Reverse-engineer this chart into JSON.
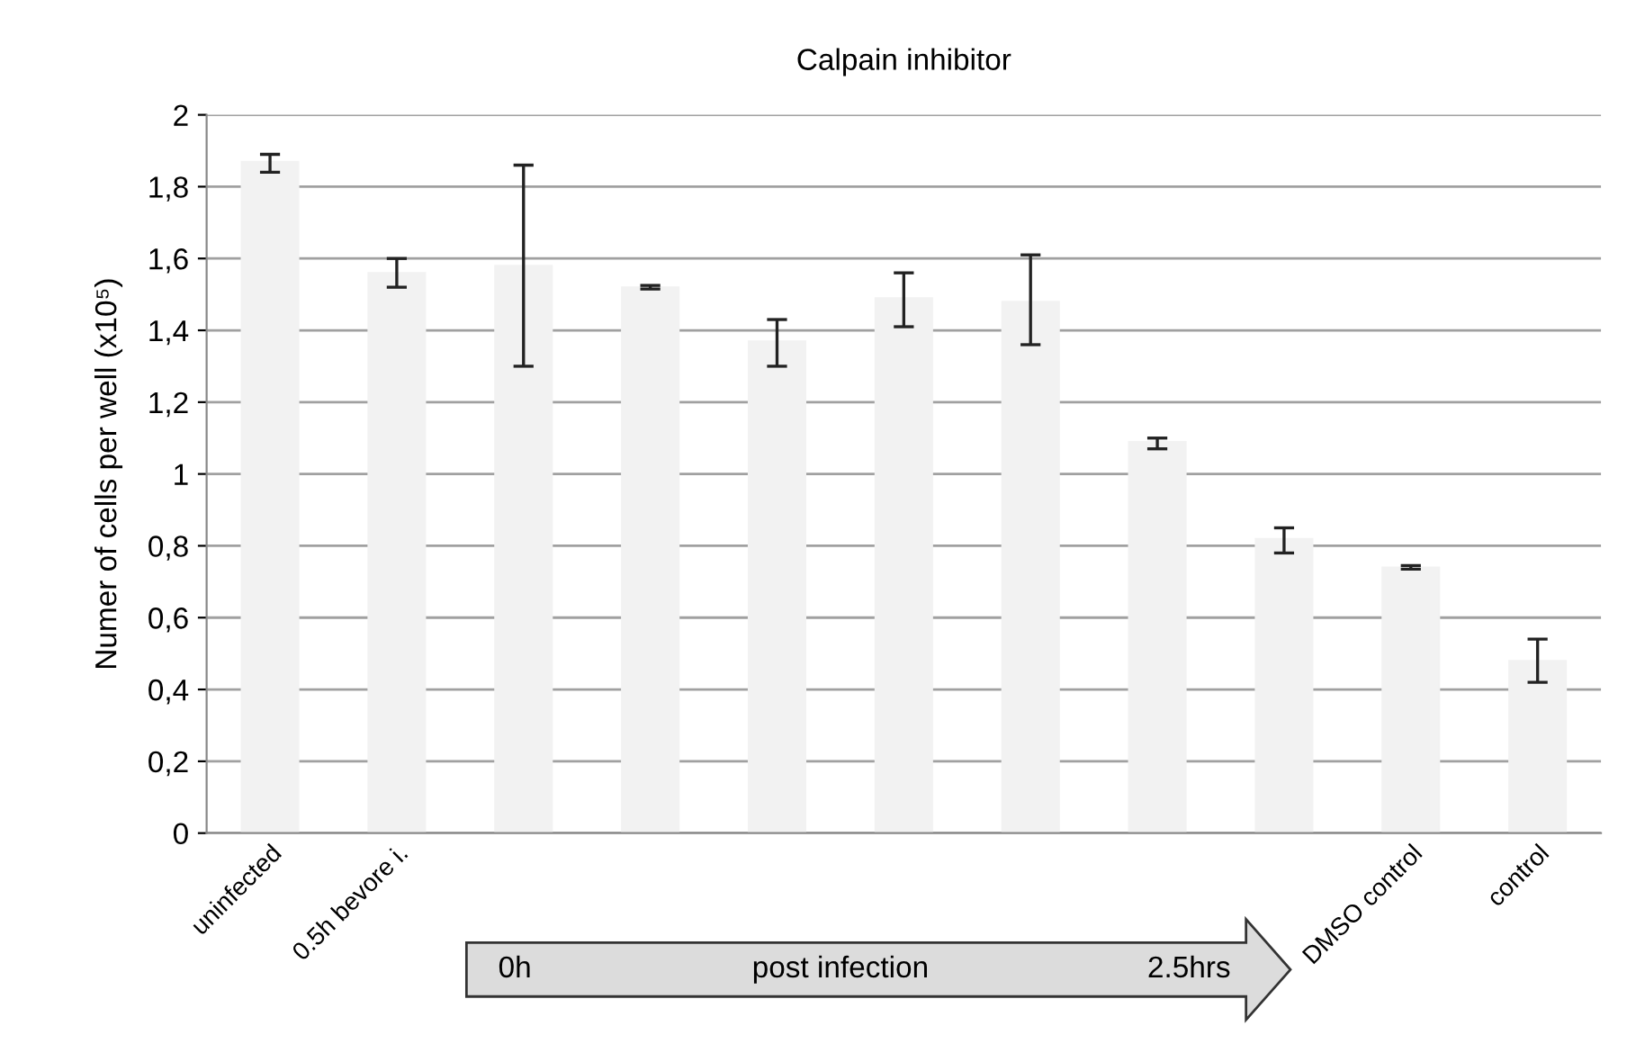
{
  "chart_data": {
    "type": "bar",
    "title": "Calpain inhibitor",
    "ylabel": "Numer of cells per well (x10⁵)",
    "categories": [
      "uninfected",
      "0.5h bevore i.",
      null,
      null,
      null,
      null,
      null,
      null,
      null,
      "DMSO control",
      "control"
    ],
    "values": [
      1.87,
      1.56,
      1.58,
      1.52,
      1.37,
      1.49,
      1.48,
      1.09,
      0.82,
      0.74,
      0.48
    ],
    "errors": [
      [
        1.84,
        1.89
      ],
      [
        1.52,
        1.6
      ],
      [
        1.3,
        1.86
      ],
      [
        1.515,
        1.525
      ],
      [
        1.3,
        1.43
      ],
      [
        1.41,
        1.56
      ],
      [
        1.36,
        1.61
      ],
      [
        1.07,
        1.1
      ],
      [
        0.78,
        0.85
      ],
      [
        0.735,
        0.745
      ],
      [
        0.42,
        0.54
      ]
    ],
    "color": "#f2f2f2",
    "ylim": [
      0,
      2
    ],
    "yticks": [
      0,
      {
        "value": 0.2,
        "label": "0,2"
      },
      {
        "value": 0.4,
        "label": "0,4"
      },
      {
        "value": 0.6,
        "label": "0,6"
      },
      {
        "value": 0.8,
        "label": "0,8"
      },
      1,
      {
        "value": 1.2,
        "label": "1,2"
      },
      {
        "value": 1.4,
        "label": "1,4"
      },
      {
        "value": 1.6,
        "label": "1,6"
      },
      {
        "value": 1.8,
        "label": "1,8"
      },
      2
    ],
    "grid": "y",
    "annotations": [
      "0h",
      "post infection",
      "2.5hrs"
    ]
  }
}
